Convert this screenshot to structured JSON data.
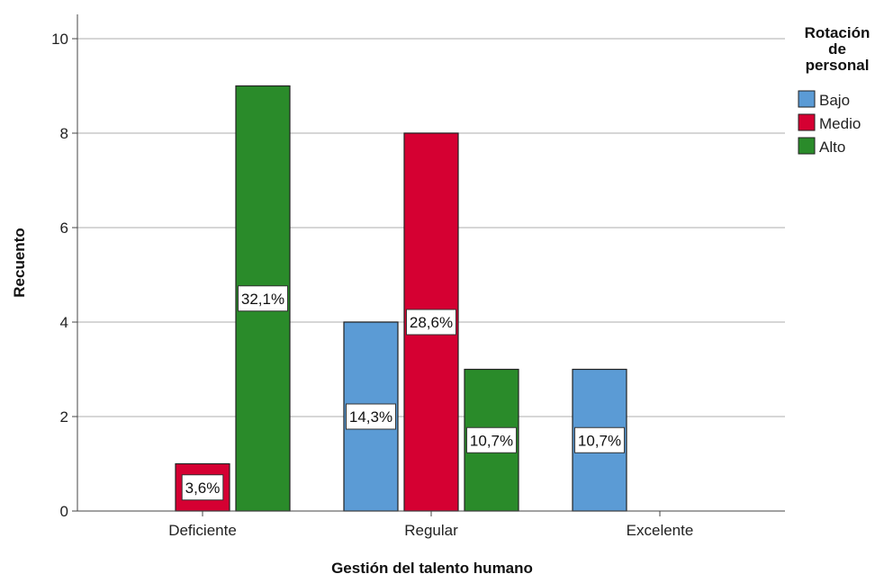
{
  "chart_data": {
    "type": "bar",
    "categories": [
      "Deficiente",
      "Regular",
      "Excelente"
    ],
    "series": [
      {
        "name": "Bajo",
        "color": "#5b9bd5",
        "values": [
          0,
          4,
          3
        ],
        "labels": [
          "",
          "14,3%",
          "10,7%"
        ]
      },
      {
        "name": "Medio",
        "color": "#d50032",
        "values": [
          1,
          8,
          0
        ],
        "labels": [
          "3,6%",
          "28,6%",
          ""
        ]
      },
      {
        "name": "Alto",
        "color": "#2a8b2a",
        "values": [
          9,
          3,
          0
        ],
        "labels": [
          "32,1%",
          "10,7%",
          ""
        ]
      }
    ],
    "xlabel": "Gestión del talento humano",
    "ylabel": "Recuento",
    "ylim": [
      0,
      10
    ],
    "yticks": [
      0,
      2,
      4,
      6,
      8,
      10
    ],
    "grid": true,
    "legend": {
      "title_lines": [
        "Rotación",
        "de",
        "personal"
      ],
      "position": "top-right"
    }
  }
}
